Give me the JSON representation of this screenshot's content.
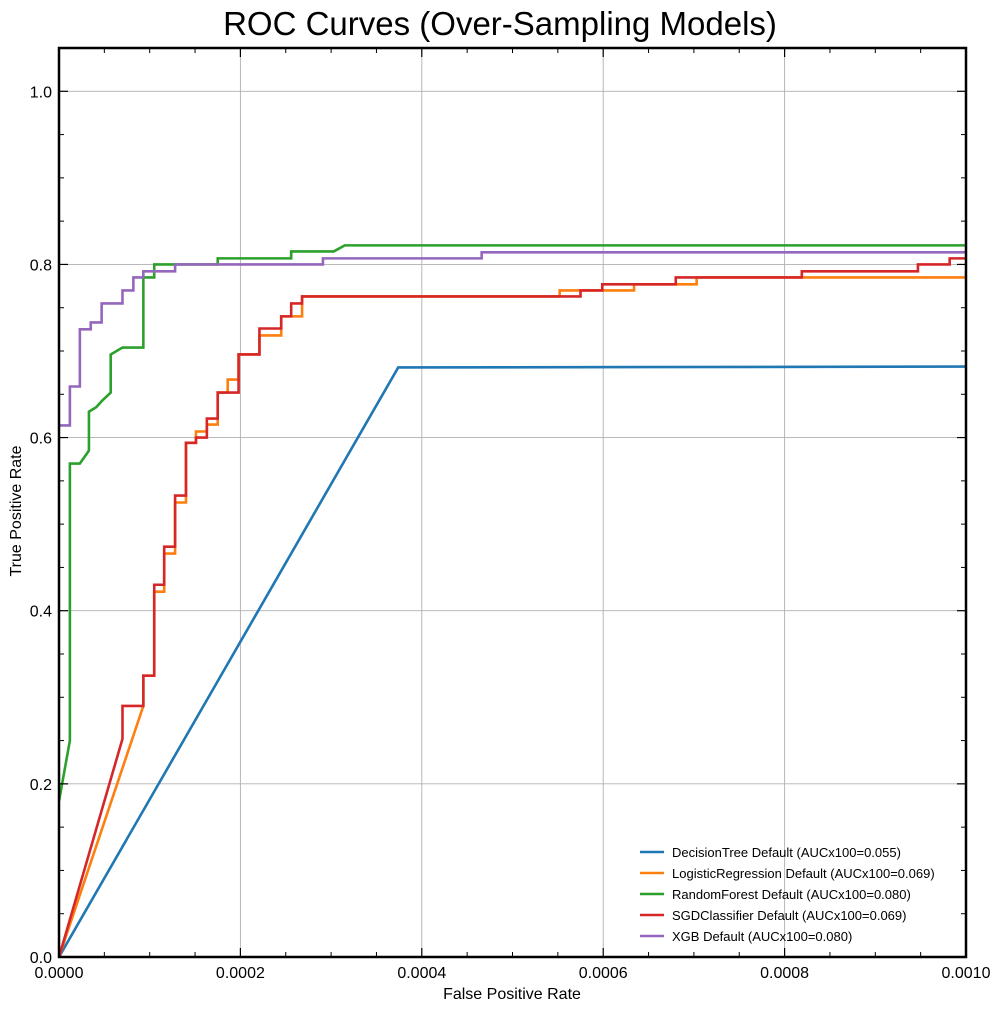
{
  "chart_data": {
    "type": "line",
    "title": "ROC Curves (Over-Sampling Models)",
    "xlabel": "False Positive Rate",
    "ylabel": "True Positive Rate",
    "xlim": [
      0,
      0.001
    ],
    "ylim": [
      0,
      1.05
    ],
    "xticks": [
      "0.0000",
      "0.0002",
      "0.0004",
      "0.0006",
      "0.0008",
      "0.0010"
    ],
    "yticks": [
      "0.0",
      "0.2",
      "0.4",
      "0.6",
      "0.8",
      "1.0"
    ],
    "grid": true,
    "legend_position": "lower-right",
    "series": [
      {
        "name": "DecisionTree Default (AUCx100=0.055)",
        "color": "#1f77b4",
        "points": [
          [
            0,
            0
          ],
          [
            0.000374,
            0.681
          ],
          [
            0.001,
            0.682
          ]
        ]
      },
      {
        "name": "LogisticRegression Default (AUCx100=0.069)",
        "color": "#ff7f0e",
        "points": [
          [
            0,
            0
          ],
          [
            9.3e-05,
            0.29
          ],
          [
            9.3e-05,
            0.325
          ],
          [
            0.000105,
            0.325
          ],
          [
            0.000105,
            0.422
          ],
          [
            0.000116,
            0.422
          ],
          [
            0.000116,
            0.466
          ],
          [
            0.000128,
            0.466
          ],
          [
            0.000128,
            0.525
          ],
          [
            0.00014,
            0.525
          ],
          [
            0.00014,
            0.594
          ],
          [
            0.000151,
            0.594
          ],
          [
            0.000151,
            0.607
          ],
          [
            0.000163,
            0.607
          ],
          [
            0.000163,
            0.615
          ],
          [
            0.000175,
            0.615
          ],
          [
            0.000175,
            0.652
          ],
          [
            0.000186,
            0.652
          ],
          [
            0.000186,
            0.667
          ],
          [
            0.000198,
            0.667
          ],
          [
            0.000198,
            0.696
          ],
          [
            0.000221,
            0.696
          ],
          [
            0.000221,
            0.718
          ],
          [
            0.000245,
            0.718
          ],
          [
            0.000245,
            0.74
          ],
          [
            0.000268,
            0.74
          ],
          [
            0.000268,
            0.763
          ],
          [
            0.000552,
            0.763
          ],
          [
            0.000552,
            0.77
          ],
          [
            0.000634,
            0.77
          ],
          [
            0.000634,
            0.777
          ],
          [
            0.000703,
            0.777
          ],
          [
            0.000703,
            0.785
          ],
          [
            0.001,
            0.785
          ],
          [
            0.001,
            0.792
          ]
        ]
      },
      {
        "name": "RandomForest Default (AUCx100=0.080)",
        "color": "#2ca02c",
        "points": [
          [
            0,
            0.18
          ],
          [
            1.2e-05,
            0.25
          ],
          [
            1.2e-05,
            0.57
          ],
          [
            2.3e-05,
            0.57
          ],
          [
            3.3e-05,
            0.585
          ],
          [
            3.3e-05,
            0.63
          ],
          [
            4.1e-05,
            0.635
          ],
          [
            4.7e-05,
            0.642
          ],
          [
            5.7e-05,
            0.652
          ],
          [
            5.7e-05,
            0.696
          ],
          [
            7e-05,
            0.704
          ],
          [
            9.3e-05,
            0.704
          ],
          [
            9.3e-05,
            0.785
          ],
          [
            0.000105,
            0.785
          ],
          [
            0.000105,
            0.8
          ],
          [
            0.000175,
            0.8
          ],
          [
            0.000175,
            0.807
          ],
          [
            0.000256,
            0.807
          ],
          [
            0.000256,
            0.815
          ],
          [
            0.000303,
            0.815
          ],
          [
            0.000315,
            0.822
          ],
          [
            0.001,
            0.822
          ]
        ]
      },
      {
        "name": "SGDClassifier Default (AUCx100=0.069)",
        "color": "#d62728",
        "points": [
          [
            0,
            0
          ],
          [
            7e-05,
            0.252
          ],
          [
            7e-05,
            0.29
          ],
          [
            9.3e-05,
            0.29
          ],
          [
            9.3e-05,
            0.325
          ],
          [
            0.000105,
            0.325
          ],
          [
            0.000105,
            0.43
          ],
          [
            0.000116,
            0.43
          ],
          [
            0.000116,
            0.474
          ],
          [
            0.000128,
            0.474
          ],
          [
            0.000128,
            0.533
          ],
          [
            0.00014,
            0.533
          ],
          [
            0.00014,
            0.594
          ],
          [
            0.000151,
            0.594
          ],
          [
            0.000151,
            0.6
          ],
          [
            0.000163,
            0.6
          ],
          [
            0.000163,
            0.622
          ],
          [
            0.000175,
            0.622
          ],
          [
            0.000175,
            0.652
          ],
          [
            0.000198,
            0.652
          ],
          [
            0.000198,
            0.696
          ],
          [
            0.000221,
            0.696
          ],
          [
            0.000221,
            0.726
          ],
          [
            0.000245,
            0.726
          ],
          [
            0.000245,
            0.74
          ],
          [
            0.000256,
            0.74
          ],
          [
            0.000256,
            0.755
          ],
          [
            0.000268,
            0.755
          ],
          [
            0.000268,
            0.763
          ],
          [
            0.000575,
            0.763
          ],
          [
            0.000575,
            0.77
          ],
          [
            0.000599,
            0.77
          ],
          [
            0.000599,
            0.777
          ],
          [
            0.00068,
            0.777
          ],
          [
            0.00068,
            0.785
          ],
          [
            0.000819,
            0.785
          ],
          [
            0.000819,
            0.792
          ],
          [
            0.000947,
            0.792
          ],
          [
            0.000947,
            0.8
          ],
          [
            0.000982,
            0.8
          ],
          [
            0.000982,
            0.807
          ],
          [
            0.001,
            0.807
          ]
        ]
      },
      {
        "name": "XGB Default (AUCx100=0.080)",
        "color": "#9467bd",
        "points": [
          [
            0,
            0.614
          ],
          [
            1.2e-05,
            0.614
          ],
          [
            1.2e-05,
            0.659
          ],
          [
            2.3e-05,
            0.659
          ],
          [
            2.3e-05,
            0.725
          ],
          [
            3.5e-05,
            0.725
          ],
          [
            3.5e-05,
            0.733
          ],
          [
            4.7e-05,
            0.733
          ],
          [
            4.7e-05,
            0.755
          ],
          [
            7e-05,
            0.755
          ],
          [
            7e-05,
            0.77
          ],
          [
            8.2e-05,
            0.77
          ],
          [
            8.2e-05,
            0.785
          ],
          [
            9.3e-05,
            0.785
          ],
          [
            9.3e-05,
            0.792
          ],
          [
            0.000128,
            0.792
          ],
          [
            0.000128,
            0.8
          ],
          [
            0.000291,
            0.8
          ],
          [
            0.000291,
            0.807
          ],
          [
            0.000466,
            0.807
          ],
          [
            0.000466,
            0.814
          ],
          [
            0.001,
            0.814
          ]
        ]
      }
    ]
  }
}
